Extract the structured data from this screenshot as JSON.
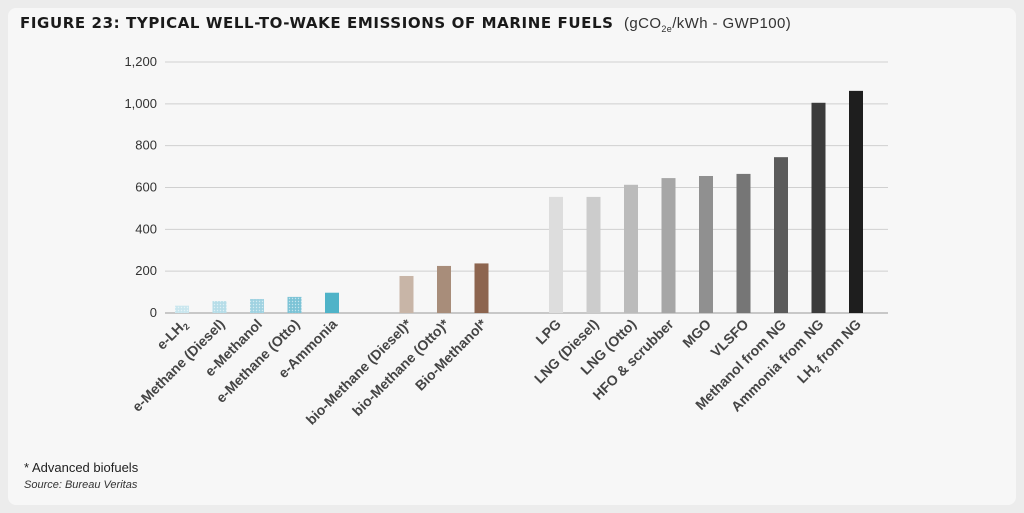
{
  "title": {
    "main": "FIGURE 23: TYPICAL WELL-TO-WAKE EMISSIONS OF MARINE FUELS",
    "unit_pre": "(gCO",
    "unit_sub": "2e",
    "unit_post": "/kWh - GWP100)"
  },
  "footnote": "* Advanced biofuels",
  "source": "Source: Bureau Veritas",
  "chart_data": {
    "type": "bar",
    "ylim": [
      0,
      1200
    ],
    "yticks": [
      "0",
      "200",
      "400",
      "600",
      "800",
      "1,000",
      "1,200"
    ],
    "gridlines": true,
    "categories": [
      "e-LH2",
      "e-Methane (Diesel)",
      "e-Methanol",
      "e-Methane (Otto)",
      "e-Ammonia",
      "bio-Methane (Diesel)*",
      "bio-Methane (Otto)*",
      "Bio-Methanol*",
      "LPG",
      "LNG (Diesel)",
      "LNG (Otto)",
      "HFO & scrubber",
      "MGO",
      "VLSFO",
      "Methanol from NG",
      "Ammonia from NG",
      "LH2 from NG"
    ],
    "values": [
      35,
      57,
      67,
      77,
      97,
      177,
      225,
      237,
      555,
      555,
      613,
      645,
      655,
      665,
      745,
      1005,
      1062
    ],
    "groups": [
      0,
      0,
      0,
      0,
      0,
      1,
      1,
      1,
      2,
      2,
      2,
      2,
      2,
      2,
      2,
      2,
      2
    ],
    "colors": [
      "#c9e6ee",
      "#b6dde8",
      "#a0d2e1",
      "#7cc3d6",
      "#4fb3c8",
      "#c8b5a7",
      "#a88d7a",
      "#8d654f",
      "#dddddd",
      "#cccccc",
      "#bbbbbb",
      "#a6a6a6",
      "#909090",
      "#767676",
      "#5b5b5b",
      "#3b3b3b",
      "#1e1e1e"
    ],
    "patterned": [
      true,
      true,
      true,
      true,
      false,
      false,
      false,
      false,
      false,
      false,
      false,
      false,
      false,
      false,
      false,
      false,
      false
    ]
  }
}
